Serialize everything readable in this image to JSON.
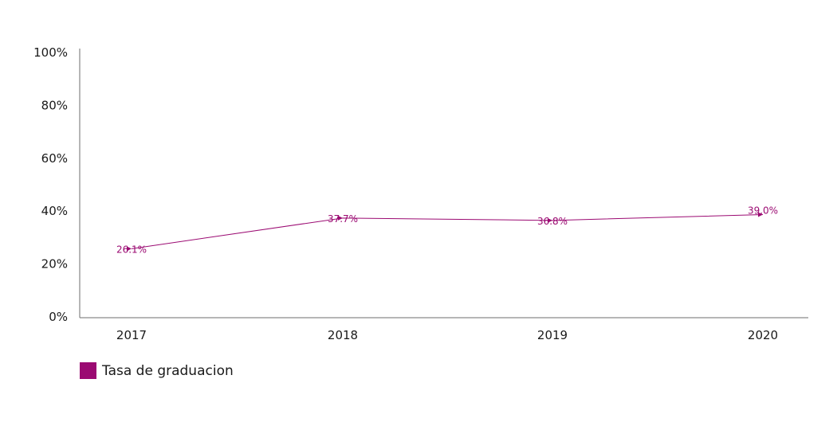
{
  "chart_data": {
    "type": "line",
    "categories": [
      "2017",
      "2018",
      "2019",
      "2020"
    ],
    "series": [
      {
        "name": "Tasa de graduacion",
        "values": [
          26.1,
          37.7,
          36.8,
          39.0
        ],
        "labels": [
          "26.1%",
          "37.7%",
          "36.8%",
          "39.0%"
        ],
        "color": "#9b0a72"
      }
    ],
    "yticks": [
      "0%",
      "20%",
      "40%",
      "60%",
      "80%",
      "100%"
    ],
    "ylim": [
      0,
      100
    ],
    "grid": false,
    "legend_position": "bottom-left"
  }
}
